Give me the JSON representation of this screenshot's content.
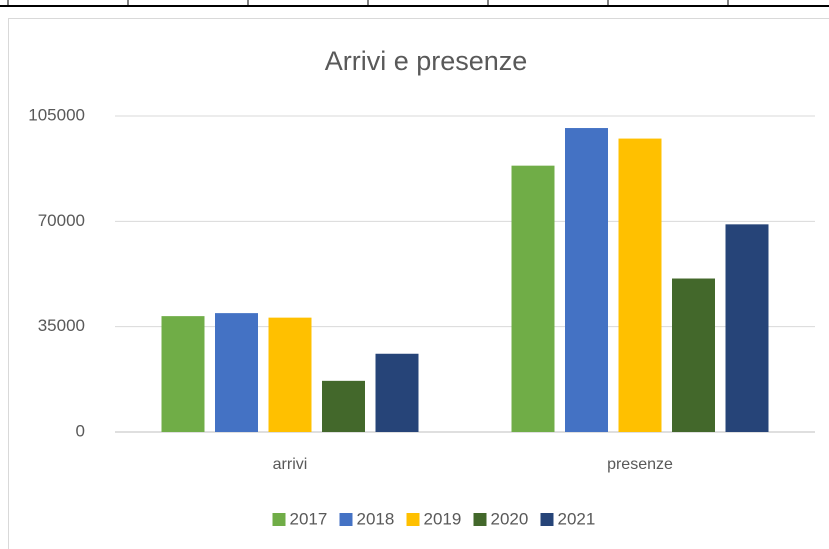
{
  "chart_data": {
    "type": "bar",
    "title": "Arrivi e presenze",
    "categories": [
      "arrivi",
      "presenze"
    ],
    "series": [
      {
        "name": "2017",
        "color": "#70ad47",
        "values": [
          38500,
          88500
        ]
      },
      {
        "name": "2018",
        "color": "#4472c4",
        "values": [
          39500,
          101000
        ]
      },
      {
        "name": "2019",
        "color": "#ffc000",
        "values": [
          38000,
          97500
        ]
      },
      {
        "name": "2020",
        "color": "#43682b",
        "values": [
          17000,
          51000
        ]
      },
      {
        "name": "2021",
        "color": "#264478",
        "values": [
          26000,
          69000
        ]
      }
    ],
    "ylim": [
      0,
      105000
    ],
    "yticks": [
      0,
      35000,
      70000,
      105000
    ],
    "grid": true,
    "legend": "bottom"
  }
}
